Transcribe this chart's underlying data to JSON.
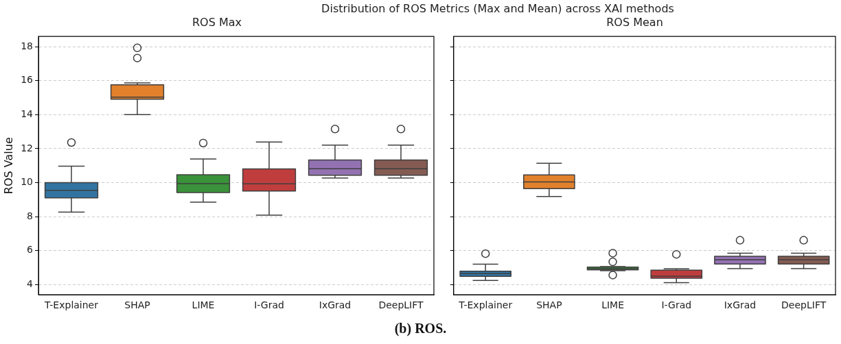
{
  "chart_data": [
    {
      "type": "box",
      "title": "ROS Max",
      "ylabel": "ROS Value",
      "categories": [
        "T-Explainer",
        "SHAP",
        "LIME",
        "I-Grad",
        "IxGrad",
        "DeepLIFT"
      ],
      "colors": [
        "#3274a1",
        "#e1812c",
        "#3a923a",
        "#c03d3e",
        "#9372b2",
        "#845b53"
      ],
      "boxes": [
        {
          "low": 8.27,
          "q1": 9.1,
          "median": 9.55,
          "q3": 10.0,
          "high": 10.97,
          "outliers": [
            12.36
          ]
        },
        {
          "low": 14.0,
          "q1": 14.91,
          "median": 15.03,
          "q3": 15.76,
          "high": 15.87,
          "outliers": [
            17.93,
            17.33
          ]
        },
        {
          "low": 8.85,
          "q1": 9.42,
          "median": 9.94,
          "q3": 10.46,
          "high": 11.39,
          "outliers": [
            12.33
          ]
        },
        {
          "low": 8.09,
          "q1": 9.51,
          "median": 9.93,
          "q3": 10.81,
          "high": 12.39
        },
        {
          "low": 10.27,
          "q1": 10.43,
          "median": 10.82,
          "q3": 11.33,
          "high": 12.21,
          "outliers": [
            13.15
          ]
        },
        {
          "low": 10.27,
          "q1": 10.43,
          "median": 10.82,
          "q3": 11.33,
          "high": 12.21,
          "outliers": [
            13.15
          ]
        }
      ],
      "ylim": [
        3.4,
        18.6
      ],
      "yticks": [
        4,
        6,
        8,
        10,
        12,
        14,
        16,
        18
      ],
      "grid": "y",
      "legend": false,
      "annotations": [
        "Distribution of ROS Metrics (Max and Mean) across XAI methods",
        "(b) ROS."
      ]
    },
    {
      "type": "box",
      "title": "ROS Mean",
      "categories": [
        "T-Explainer",
        "SHAP",
        "LIME",
        "I-Grad",
        "IxGrad",
        "DeepLIFT"
      ],
      "colors": [
        "#3274a1",
        "#e1812c",
        "#3a923a",
        "#c03d3e",
        "#9372b2",
        "#845b53"
      ],
      "boxes": [
        {
          "low": 4.24,
          "q1": 4.49,
          "median": 4.65,
          "q3": 4.79,
          "high": 5.2,
          "outliers": [
            5.82
          ]
        },
        {
          "low": 9.18,
          "q1": 9.65,
          "median": 10.04,
          "q3": 10.45,
          "high": 11.14
        },
        {
          "low": 4.82,
          "q1": 4.87,
          "median": 4.94,
          "q3": 5.03,
          "high": 5.06,
          "outliers": [
            5.85,
            5.34,
            4.56
          ]
        },
        {
          "low": 4.11,
          "q1": 4.38,
          "median": 4.5,
          "q3": 4.85,
          "high": 4.93,
          "outliers": [
            5.78
          ]
        },
        {
          "low": 4.94,
          "q1": 5.21,
          "median": 5.46,
          "q3": 5.67,
          "high": 5.85,
          "outliers": [
            6.61
          ]
        },
        {
          "low": 4.94,
          "q1": 5.21,
          "median": 5.46,
          "q3": 5.67,
          "high": 5.85,
          "outliers": [
            6.61
          ]
        }
      ],
      "ylim": [
        3.4,
        18.6
      ],
      "yticks": [
        4,
        6,
        8,
        10,
        12,
        14,
        16,
        18
      ],
      "grid": "y",
      "legend": false,
      "tick_labels": "x"
    }
  ]
}
